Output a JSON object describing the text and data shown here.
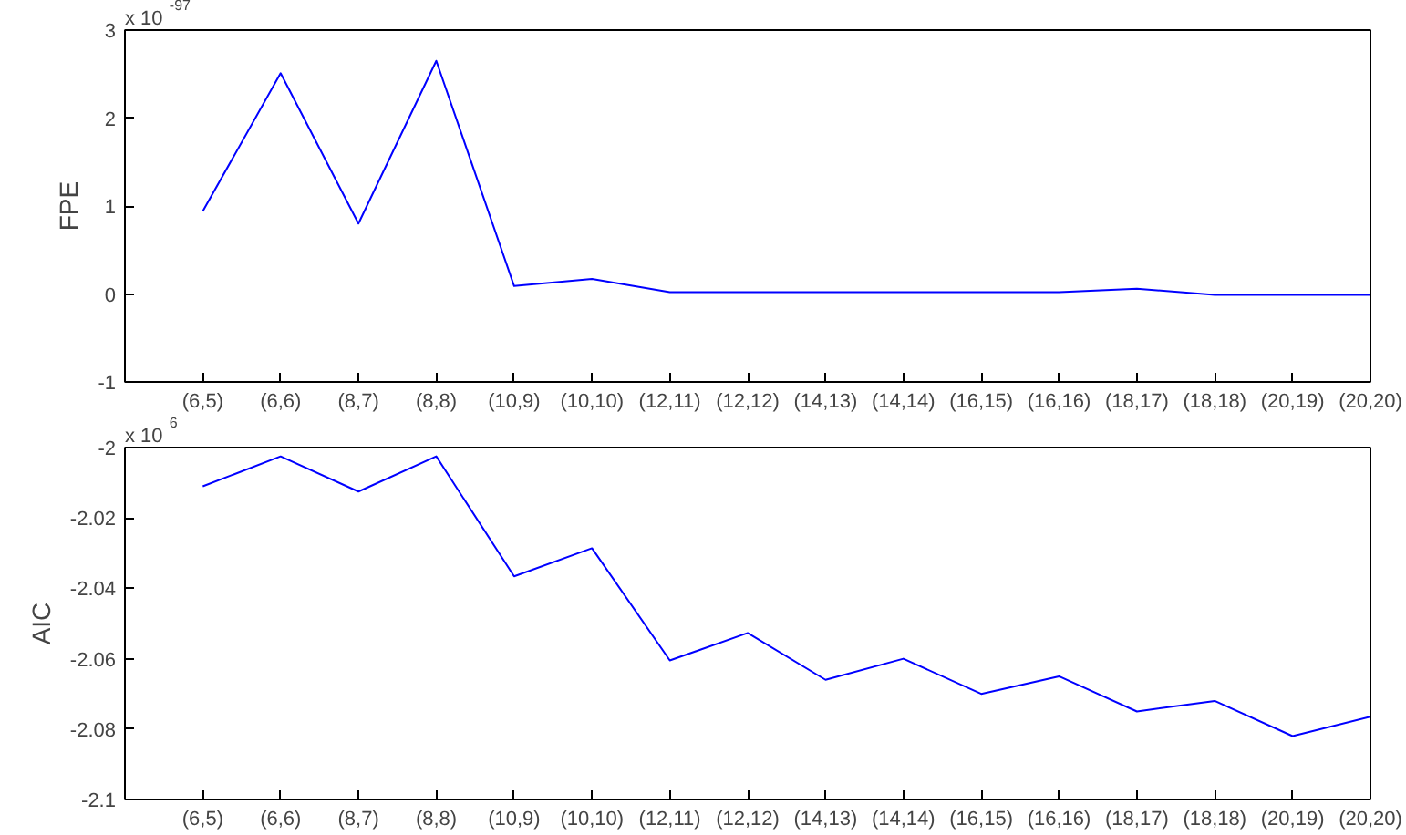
{
  "chart_data": [
    {
      "type": "line",
      "ylabel": "FPE",
      "annotations": [
        "x 10$^{-97}$"
      ],
      "categories": [
        "(6,5)",
        "(6,6)",
        "(8,7)",
        "(8,8)",
        "(10,9)",
        "(10,10)",
        "(12,11)",
        "(12,12)",
        "(14,13)",
        "(14,14)",
        "(16,15)",
        "(16,16)",
        "(18,17)",
        "(18,18)",
        "(20,19)",
        "(20,20)"
      ],
      "series": [
        {
          "color": "#0000ff",
          "values": [
            0.94,
            2.51,
            0.8,
            2.65,
            0.09,
            0.17,
            0.02,
            0.02,
            0.02,
            0.02,
            0.02,
            0.02,
            0.06,
            -0.01,
            -0.01,
            -0.01
          ]
        }
      ],
      "ylim": [
        -1,
        3
      ],
      "yticks": [
        -1,
        0,
        1,
        2,
        3
      ],
      "grid": false
    },
    {
      "type": "line",
      "ylabel": "AIC",
      "annotations": [
        "x 10$^{6}$"
      ],
      "categories": [
        "(6,5)",
        "(6,6)",
        "(8,7)",
        "(8,8)",
        "(10,9)",
        "(10,10)",
        "(12,11)",
        "(12,12)",
        "(14,13)",
        "(14,14)",
        "(16,15)",
        "(16,16)",
        "(18,17)",
        "(18,18)",
        "(20,19)",
        "(20,20)"
      ],
      "series": [
        {
          "color": "#0000ff",
          "values": [
            -2.011,
            -2.0025,
            -2.0125,
            -2.0025,
            -2.0366,
            -2.0286,
            -2.0605,
            -2.0527,
            -2.066,
            -2.06,
            -2.07,
            -2.065,
            -2.075,
            -2.072,
            -2.082,
            -2.0765
          ]
        }
      ],
      "ylim": [
        -2.1,
        -2
      ],
      "yticks": [
        -2.1,
        -2.08,
        -2.06,
        -2.04,
        -2.02,
        -2
      ],
      "grid": false
    }
  ]
}
